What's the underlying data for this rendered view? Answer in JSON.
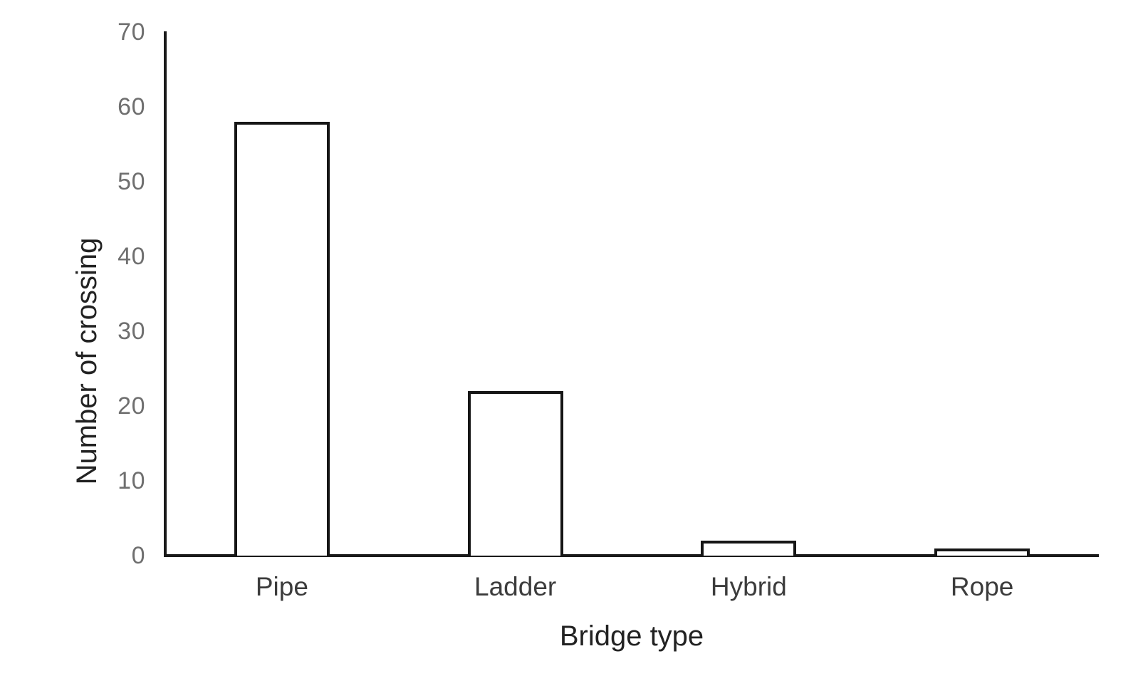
{
  "chart_data": {
    "type": "bar",
    "title": "",
    "categories": [
      "Pipe",
      "Ladder",
      "Hybrid",
      "Rope"
    ],
    "values": [
      58,
      22,
      2,
      1
    ],
    "xlabel": "Bridge type",
    "ylabel": "Number of crossing",
    "ylim": [
      0,
      70
    ],
    "yticks": [
      0,
      10,
      20,
      30,
      40,
      50,
      60,
      70
    ],
    "grid": false,
    "legend": null,
    "colors": {
      "background": "#ffffff",
      "bar_fill": "#ffffff",
      "bar_border": "#161616",
      "axis_line": "#1a1a1a",
      "tick_label": "#6f6f6f",
      "category_label": "#3c3c3c",
      "axis_title": "#222222"
    }
  }
}
